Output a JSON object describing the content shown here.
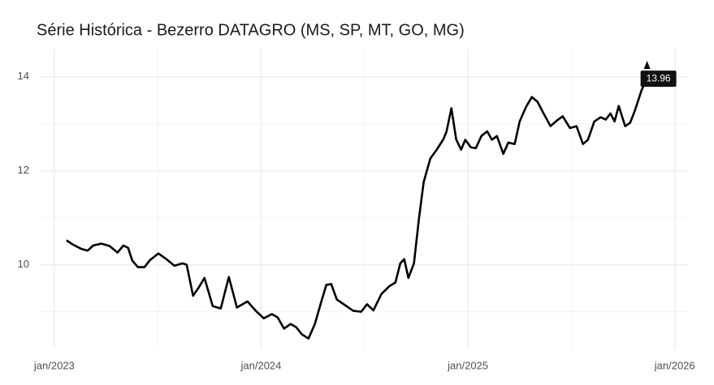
{
  "chart_data": {
    "type": "line",
    "title": "Série Histórica - Bezerro DATAGRO (MS, SP, MT, GO, MG)",
    "x": [
      2023.059,
      2023.09,
      2023.13,
      2023.161,
      2023.188,
      2023.228,
      2023.267,
      2023.306,
      2023.334,
      2023.357,
      2023.377,
      2023.404,
      2023.436,
      2023.463,
      2023.503,
      2023.542,
      2023.581,
      2023.62,
      2023.64,
      2023.671,
      2023.699,
      2023.726,
      2023.766,
      2023.805,
      2023.844,
      2023.883,
      2023.934,
      2023.974,
      2024.013,
      2024.052,
      2024.08,
      2024.111,
      2024.143,
      2024.17,
      2024.197,
      2024.229,
      2024.26,
      2024.288,
      2024.315,
      2024.339,
      2024.366,
      2024.406,
      2024.445,
      2024.484,
      2024.512,
      2024.543,
      2024.582,
      2024.622,
      2024.649,
      2024.673,
      2024.692,
      2024.712,
      2024.739,
      2024.763,
      2024.786,
      2024.818,
      2024.849,
      2024.881,
      2024.896,
      2024.92,
      2024.943,
      2024.967,
      2024.987,
      2025.014,
      2025.038,
      2025.065,
      2025.093,
      2025.116,
      2025.14,
      2025.171,
      2025.195,
      2025.226,
      2025.25,
      2025.281,
      2025.309,
      2025.336,
      2025.367,
      2025.399,
      2025.43,
      2025.458,
      2025.493,
      2025.525,
      2025.556,
      2025.58,
      2025.611,
      2025.642,
      2025.666,
      2025.689,
      2025.709,
      2025.729,
      2025.76,
      2025.784,
      2025.807,
      2025.839,
      2025.858,
      2025.866
    ],
    "series": [
      {
        "color": "#000000",
        "values": [
          10.52,
          10.43,
          10.34,
          10.3,
          10.41,
          10.45,
          10.4,
          10.26,
          10.41,
          10.36,
          10.09,
          9.95,
          9.95,
          10.1,
          10.24,
          10.12,
          9.98,
          10.03,
          10.0,
          9.34,
          9.52,
          9.72,
          9.12,
          9.07,
          9.74,
          9.09,
          9.22,
          9.02,
          8.86,
          8.95,
          8.88,
          8.64,
          8.74,
          8.67,
          8.52,
          8.43,
          8.74,
          9.17,
          9.57,
          9.59,
          9.26,
          9.14,
          9.02,
          9.0,
          9.16,
          9.03,
          9.38,
          9.55,
          9.62,
          10.03,
          10.12,
          9.72,
          10.03,
          10.98,
          11.76,
          12.26,
          12.45,
          12.67,
          12.83,
          13.33,
          12.67,
          12.45,
          12.66,
          12.5,
          12.48,
          12.74,
          12.84,
          12.66,
          12.74,
          12.36,
          12.6,
          12.57,
          13.05,
          13.36,
          13.57,
          13.47,
          13.21,
          12.95,
          13.07,
          13.16,
          12.91,
          12.95,
          12.57,
          12.66,
          13.05,
          13.14,
          13.09,
          13.22,
          13.05,
          13.38,
          12.95,
          13.02,
          13.28,
          13.71,
          13.9,
          13.96
        ]
      }
    ],
    "xlim": [
      2022.93,
      2026.06
    ],
    "xticks": [
      {
        "value": 2023,
        "label": "jan/2023"
      },
      {
        "value": 2024,
        "label": "jan/2024"
      },
      {
        "value": 2025,
        "label": "jan/2025"
      },
      {
        "value": 2026,
        "label": "jan/2026"
      }
    ],
    "ylim": [
      8.2,
      14.6
    ],
    "yticks": [
      10,
      12,
      14
    ],
    "grid": true
  }
}
